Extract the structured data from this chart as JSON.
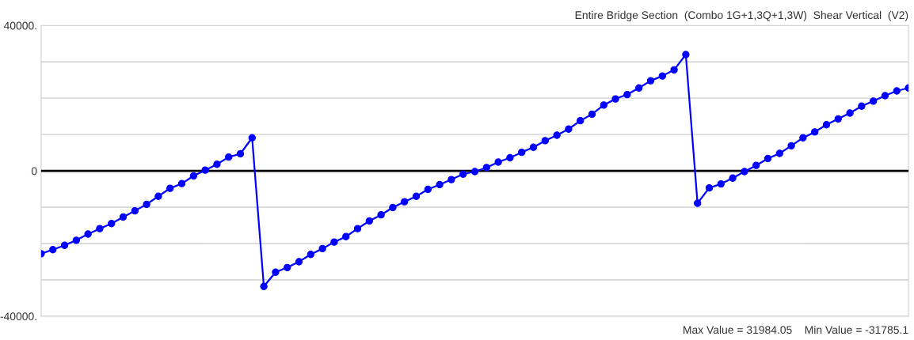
{
  "chart_data": {
    "type": "line",
    "title": "Entire Bridge Section  (Combo 1G+1,3Q+1,3W)  Shear Vertical  (V2)",
    "categories": [
      null,
      null,
      null,
      null,
      null,
      null,
      null,
      null,
      null,
      null,
      null,
      null,
      null,
      null,
      null,
      null,
      null,
      null,
      null,
      null,
      null,
      null,
      null,
      null,
      null,
      null,
      null,
      null,
      null,
      null,
      null,
      null,
      null,
      null,
      null,
      null,
      null,
      null,
      null,
      null,
      null,
      null,
      null,
      null,
      null,
      null,
      null,
      null,
      null,
      null,
      null,
      null,
      null,
      null,
      null,
      null,
      null,
      null,
      null,
      null,
      null,
      null,
      null,
      null,
      null,
      null,
      null,
      null,
      null,
      null,
      null,
      null,
      null,
      null,
      null
    ],
    "series": [
      {
        "color": "#0000ff",
        "values": [
          -22800,
          -21700,
          -20500,
          -19100,
          -17400,
          -15900,
          -14500,
          -12700,
          -11000,
          -9200,
          -7000,
          -4800,
          -3500,
          -1400,
          200,
          1800,
          3800,
          4700,
          9100,
          -31800,
          -27900,
          -26600,
          -25000,
          -23000,
          -21400,
          -19600,
          -18100,
          -15900,
          -13800,
          -12100,
          -10100,
          -8500,
          -7000,
          -5100,
          -3800,
          -2400,
          -900,
          -200,
          900,
          2400,
          3600,
          5100,
          6500,
          8300,
          9800,
          11500,
          13800,
          15600,
          18100,
          19800,
          21000,
          22800,
          24800,
          26100,
          27800,
          32000,
          -8900,
          -4700,
          -3600,
          -2000,
          -200,
          1500,
          3400,
          4800,
          6900,
          9100,
          10700,
          12700,
          14300,
          15900,
          17800,
          19200,
          20700,
          22000,
          22800
        ]
      }
    ],
    "ylim": [
      -40000,
      40000
    ],
    "yticks": [
      {
        "value": -40000,
        "label": "-40000."
      },
      {
        "value": -30000,
        "label": null
      },
      {
        "value": -20000,
        "label": null
      },
      {
        "value": -10000,
        "label": null
      },
      0,
      {
        "value": 10000,
        "label": null
      },
      {
        "value": 20000,
        "label": null
      },
      {
        "value": 30000,
        "label": null
      },
      {
        "value": 40000,
        "label": "40000."
      }
    ],
    "ref_lines": [
      {
        "axis": "y",
        "value": 0,
        "color": "#000000"
      }
    ],
    "annotations": [
      "Max Value = 31984.05",
      "Min Value = -31785.1"
    ],
    "grid": "y",
    "marker": "circle",
    "line_style": "solid",
    "tick_labels": "y"
  }
}
